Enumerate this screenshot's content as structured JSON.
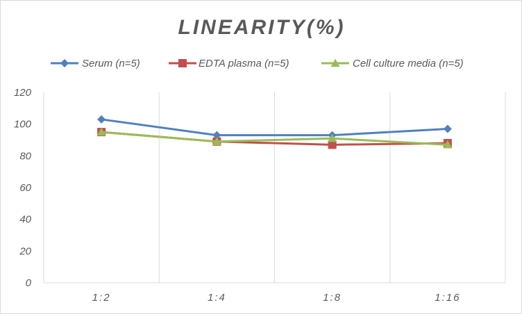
{
  "chart_data": {
    "type": "line",
    "title": "LINEARITY(%)",
    "xlabel": "",
    "ylabel": "",
    "categories": [
      "1:2",
      "1:4",
      "1:8",
      "1:16"
    ],
    "ylim": [
      0,
      120
    ],
    "yticks": [
      0,
      20,
      40,
      60,
      80,
      100,
      120
    ],
    "grid": "vertical",
    "legend": "top",
    "series": [
      {
        "name": "Serum (n=5)",
        "values": [
          103,
          93,
          93,
          97
        ],
        "color": "#4f81bd",
        "marker": "diamond"
      },
      {
        "name": "EDTA plasma (n=5)",
        "values": [
          95,
          89,
          87,
          88
        ],
        "color": "#c0504d",
        "marker": "square"
      },
      {
        "name": "Cell culture media (n=5)",
        "values": [
          95,
          89,
          91,
          87
        ],
        "color": "#9bbb59",
        "marker": "triangle"
      }
    ]
  }
}
